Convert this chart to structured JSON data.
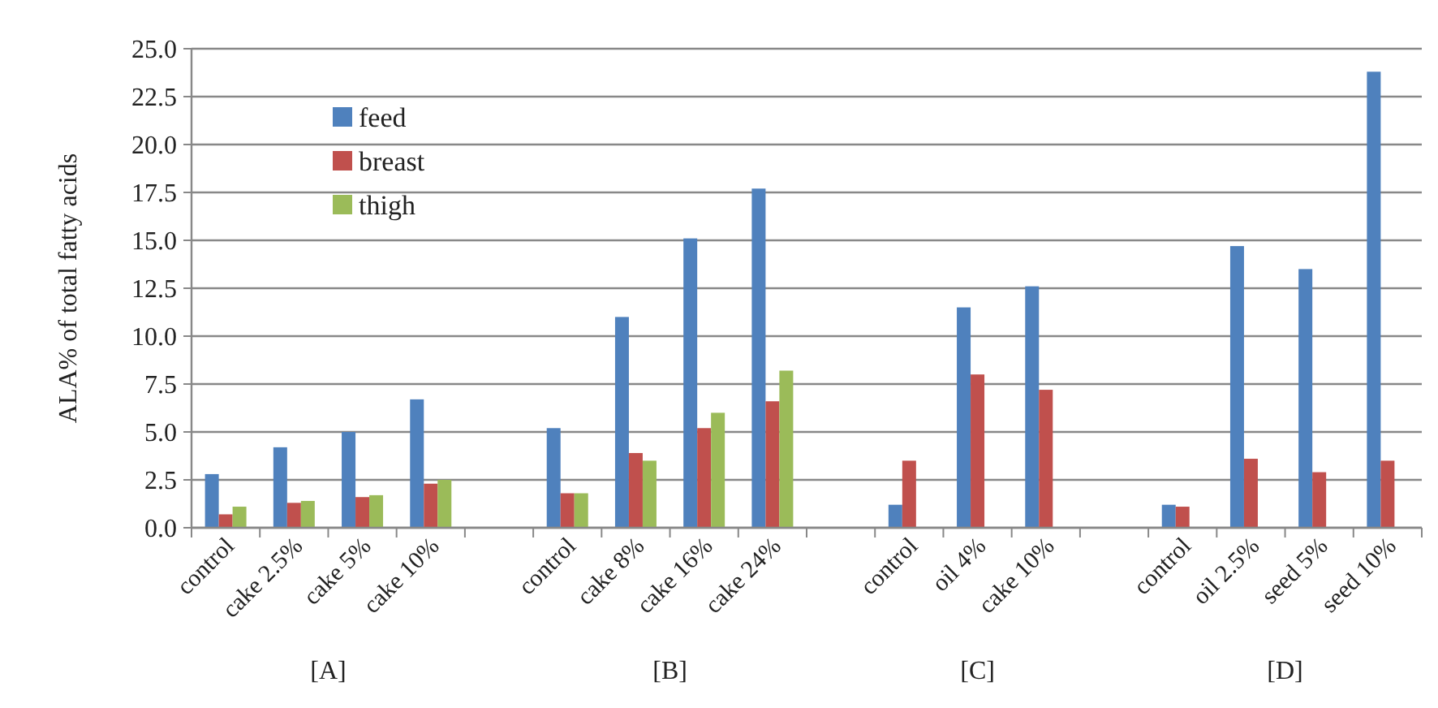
{
  "chart_data": {
    "type": "bar",
    "ylabel": "ALA% of total fatty acids",
    "categories": [
      "control",
      "cake 2.5%",
      "cake 5%",
      "cake 10%",
      null,
      "control",
      "cake 8%",
      "cake 16%",
      "cake 24%",
      null,
      "control",
      "oil 4%",
      "cake 10%",
      null,
      "control",
      "oil 2.5%",
      "seed 5%",
      "seed 10%"
    ],
    "series": [
      {
        "name": "feed",
        "color": "#4f81bd",
        "values": [
          2.8,
          4.2,
          5.0,
          6.7,
          null,
          5.2,
          11.0,
          15.1,
          17.7,
          null,
          1.2,
          11.5,
          12.6,
          null,
          1.2,
          14.7,
          13.5,
          23.8
        ]
      },
      {
        "name": "breast",
        "color": "#c0504d",
        "values": [
          0.7,
          1.3,
          1.6,
          2.3,
          null,
          1.8,
          3.9,
          5.2,
          6.6,
          null,
          3.5,
          8.0,
          7.2,
          null,
          1.1,
          3.6,
          2.9,
          3.5
        ]
      },
      {
        "name": "thigh",
        "color": "#9bbb59",
        "values": [
          1.1,
          1.4,
          1.7,
          2.5,
          null,
          1.8,
          3.5,
          6.0,
          8.2,
          null,
          null,
          null,
          null,
          null,
          null,
          null,
          null,
          null
        ]
      }
    ],
    "ylim": [
      0,
      25
    ],
    "yticks": [
      {
        "value": 0,
        "label": "0.0"
      },
      {
        "value": 2.5,
        "label": "2.5"
      },
      {
        "value": 5,
        "label": "5.0"
      },
      {
        "value": 7.5,
        "label": "7.5"
      },
      {
        "value": 10,
        "label": "10.0"
      },
      {
        "value": 12.5,
        "label": "12.5"
      },
      {
        "value": 15,
        "label": "15.0"
      },
      {
        "value": 17.5,
        "label": "17.5"
      },
      {
        "value": 20,
        "label": "20.0"
      },
      {
        "value": 22.5,
        "label": "22.5"
      },
      {
        "value": 25,
        "label": "25.0"
      }
    ],
    "grid": "y",
    "legend": "top left",
    "annotations": [
      "[A]",
      "[B]",
      "[C]",
      "[D]"
    ]
  }
}
